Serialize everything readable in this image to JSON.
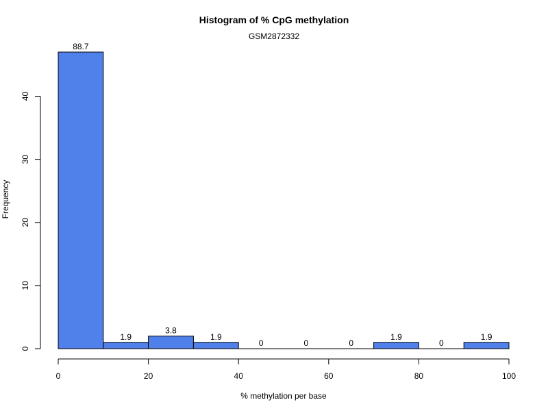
{
  "chart_data": {
    "type": "bar",
    "title": "Histogram of % CpG methylation",
    "subtitle": "GSM2872332",
    "xlabel": "% methylation per base",
    "ylabel": "Frequency",
    "bins": [
      [
        0,
        10
      ],
      [
        10,
        20
      ],
      [
        20,
        30
      ],
      [
        30,
        40
      ],
      [
        40,
        50
      ],
      [
        50,
        60
      ],
      [
        60,
        70
      ],
      [
        70,
        80
      ],
      [
        80,
        90
      ],
      [
        90,
        100
      ]
    ],
    "values": [
      47,
      1,
      2,
      1,
      0,
      0,
      0,
      1,
      0,
      1
    ],
    "bar_labels": [
      "88.7",
      "1.9",
      "3.8",
      "1.9",
      "0",
      "0",
      "0",
      "1.9",
      "0",
      "1.9"
    ],
    "xlim": [
      0,
      100
    ],
    "ylim": [
      0,
      47
    ],
    "x_ticks": [
      "0",
      "20",
      "40",
      "60",
      "80",
      "100"
    ],
    "y_ticks": [
      "0",
      "10",
      "20",
      "30",
      "40"
    ],
    "grid": false,
    "bar_color": "#5080ea",
    "bar_edge_color": "#000000"
  }
}
